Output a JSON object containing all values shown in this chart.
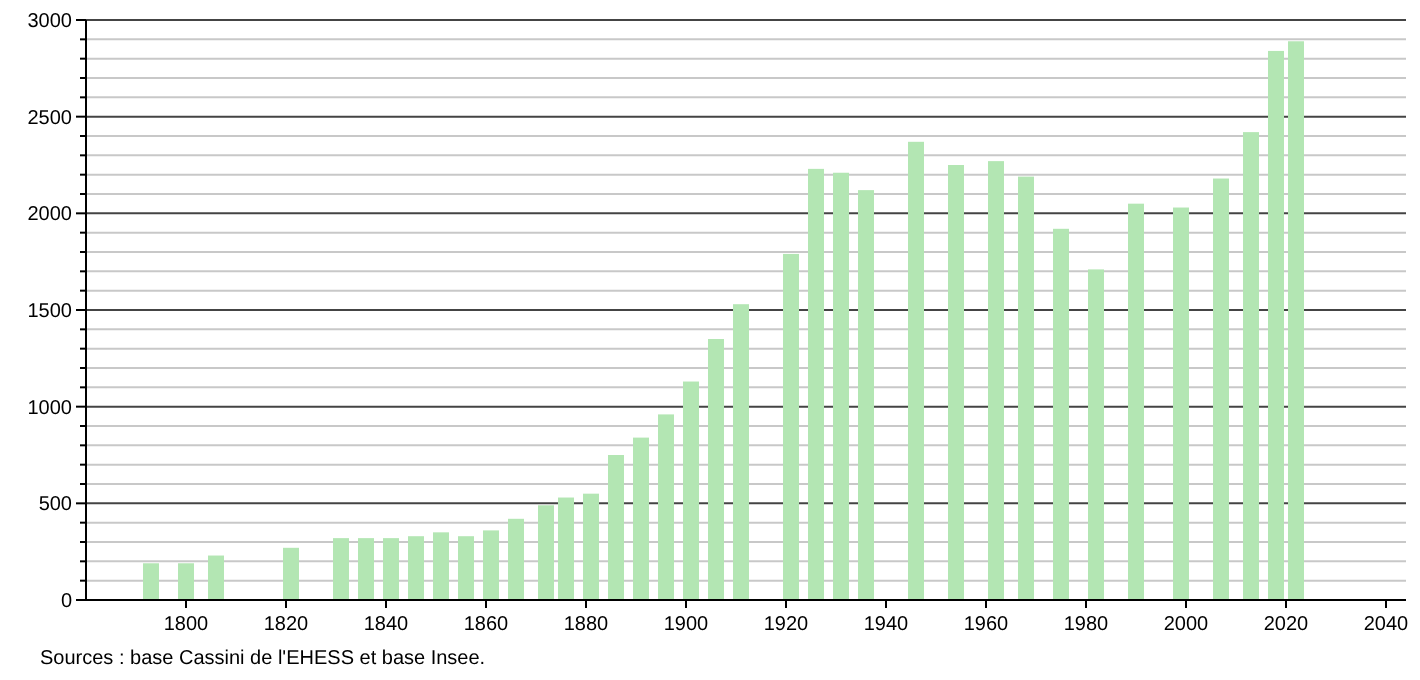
{
  "chart_data": {
    "type": "bar",
    "x": [
      1793,
      1800,
      1806,
      1821,
      1831,
      1836,
      1841,
      1846,
      1851,
      1856,
      1861,
      1866,
      1872,
      1876,
      1881,
      1886,
      1891,
      1896,
      1901,
      1906,
      1911,
      1921,
      1926,
      1931,
      1936,
      1946,
      1954,
      1962,
      1968,
      1975,
      1982,
      1990,
      1999,
      2007,
      2013,
      2018,
      2022
    ],
    "values": [
      190,
      190,
      230,
      270,
      320,
      320,
      320,
      330,
      350,
      330,
      360,
      420,
      490,
      530,
      550,
      750,
      840,
      960,
      1130,
      1350,
      1530,
      1790,
      2230,
      2210,
      2120,
      2370,
      2250,
      2270,
      2190,
      1920,
      1710,
      2050,
      2030,
      2180,
      2420,
      2840,
      2890
    ],
    "color": "#b3e6b3",
    "xlim": [
      1780,
      2044
    ],
    "xticks": [
      1800,
      1820,
      1840,
      1860,
      1880,
      1900,
      1920,
      1940,
      1960,
      1980,
      2000,
      2020,
      2040
    ],
    "ylim": [
      0,
      3000
    ],
    "yticks": [
      0,
      {
        "value": 100,
        "label": null
      },
      {
        "value": 200,
        "label": null
      },
      {
        "value": 300,
        "label": null
      },
      {
        "value": 400,
        "label": null
      },
      500,
      {
        "value": 600,
        "label": null
      },
      {
        "value": 700,
        "label": null
      },
      {
        "value": 800,
        "label": null
      },
      {
        "value": 900,
        "label": null
      },
      1000,
      {
        "value": 1100,
        "label": null
      },
      {
        "value": 1200,
        "label": null
      },
      {
        "value": 1300,
        "label": null
      },
      {
        "value": 1400,
        "label": null
      },
      1500,
      {
        "value": 1600,
        "label": null
      },
      {
        "value": 1700,
        "label": null
      },
      {
        "value": 1800,
        "label": null
      },
      {
        "value": 1900,
        "label": null
      },
      2000,
      {
        "value": 2100,
        "label": null
      },
      {
        "value": 2200,
        "label": null
      },
      {
        "value": 2300,
        "label": null
      },
      {
        "value": 2400,
        "label": null
      },
      2500,
      {
        "value": 2600,
        "label": null
      },
      {
        "value": 2700,
        "label": null
      },
      {
        "value": 2800,
        "label": null
      },
      {
        "value": 2900,
        "label": null
      },
      3000
    ],
    "grid": "y",
    "annotations": [
      "Sources : base Cassini de l'EHESS et base Insee."
    ]
  }
}
